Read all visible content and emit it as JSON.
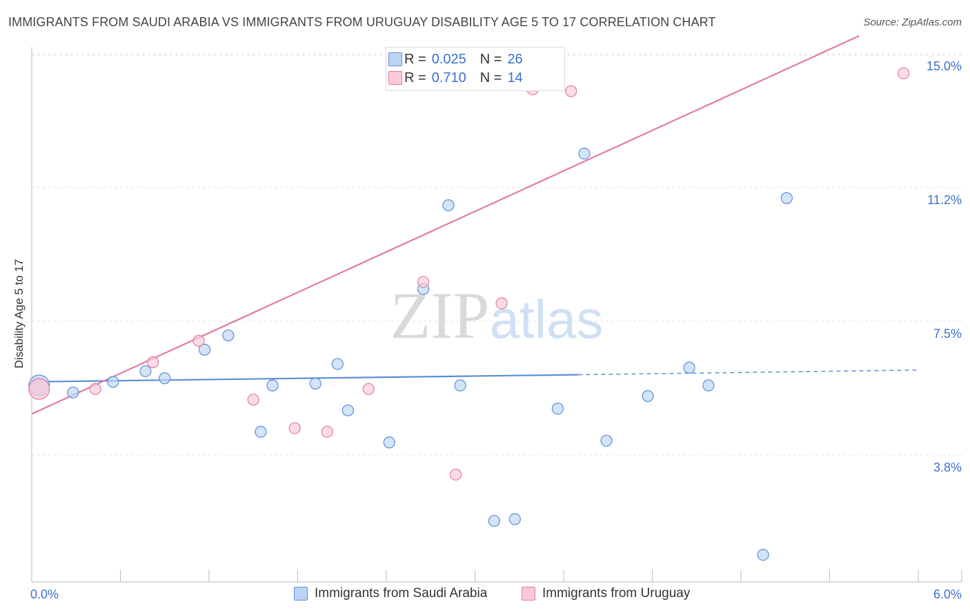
{
  "chart_data": {
    "type": "scatter",
    "title": "IMMIGRANTS FROM SAUDI ARABIA VS IMMIGRANTS FROM URUGUAY DISABILITY AGE 5 TO 17 CORRELATION CHART",
    "source": "Source: ZipAtlas.com",
    "ylabel": "Disability Age 5 to 17",
    "xlabel": "",
    "xlim": [
      0,
      6.0
    ],
    "ylim": [
      0.5,
      15.5
    ],
    "x_tick_labels": [
      "0.0%",
      "6.0%"
    ],
    "y_ticks": [
      {
        "value": 15.0,
        "label": "15.0%"
      },
      {
        "value": 11.25,
        "label": "11.2%"
      },
      {
        "value": 7.5,
        "label": "7.5%"
      },
      {
        "value": 3.75,
        "label": "3.8%"
      }
    ],
    "watermark": "ZIPatlas",
    "series": [
      {
        "name": "Immigrants from Saudi Arabia",
        "color": "#5b8fd6",
        "fill": "#bcd4f5",
        "r_label": "R =",
        "r_value": "0.025",
        "n_label": "N =",
        "n_value": "26",
        "trend": {
          "x0": 0.0,
          "y0": 5.8,
          "x1": 3.7,
          "y1": 6.0,
          "dash_to_x": 6.0,
          "dash_to_y": 6.13
        },
        "points": [
          {
            "x": 0.05,
            "y": 5.7,
            "big": true
          },
          {
            "x": 0.28,
            "y": 5.5
          },
          {
            "x": 0.55,
            "y": 5.8
          },
          {
            "x": 0.77,
            "y": 6.1
          },
          {
            "x": 0.9,
            "y": 5.9
          },
          {
            "x": 1.17,
            "y": 6.7
          },
          {
            "x": 1.33,
            "y": 7.1
          },
          {
            "x": 1.55,
            "y": 4.4
          },
          {
            "x": 1.63,
            "y": 5.7
          },
          {
            "x": 1.92,
            "y": 5.75
          },
          {
            "x": 2.07,
            "y": 6.3
          },
          {
            "x": 2.14,
            "y": 5.0
          },
          {
            "x": 2.42,
            "y": 4.1
          },
          {
            "x": 2.65,
            "y": 8.4
          },
          {
            "x": 2.82,
            "y": 10.75
          },
          {
            "x": 2.9,
            "y": 5.7
          },
          {
            "x": 3.13,
            "y": 1.9
          },
          {
            "x": 3.27,
            "y": 1.95
          },
          {
            "x": 3.56,
            "y": 5.05
          },
          {
            "x": 3.74,
            "y": 12.2
          },
          {
            "x": 3.89,
            "y": 4.15
          },
          {
            "x": 4.17,
            "y": 5.4
          },
          {
            "x": 4.45,
            "y": 6.2
          },
          {
            "x": 4.58,
            "y": 5.7
          },
          {
            "x": 4.95,
            "y": 0.95
          },
          {
            "x": 5.11,
            "y": 10.95
          }
        ]
      },
      {
        "name": "Immigrants from Uruguay",
        "color": "#e07ba0",
        "fill": "#f9c9d7",
        "r_label": "R =",
        "r_value": "0.710",
        "n_label": "N =",
        "n_value": "14",
        "trend": {
          "x0": 0.0,
          "y0": 4.9,
          "x1": 5.6,
          "y1": 15.5
        },
        "points": [
          {
            "x": 0.05,
            "y": 5.6,
            "big": true
          },
          {
            "x": 0.43,
            "y": 5.6
          },
          {
            "x": 0.82,
            "y": 6.35
          },
          {
            "x": 1.13,
            "y": 6.95
          },
          {
            "x": 1.5,
            "y": 5.3
          },
          {
            "x": 1.78,
            "y": 4.5
          },
          {
            "x": 2.0,
            "y": 4.4
          },
          {
            "x": 2.28,
            "y": 5.6
          },
          {
            "x": 2.65,
            "y": 8.6
          },
          {
            "x": 2.87,
            "y": 3.2
          },
          {
            "x": 3.18,
            "y": 8.0
          },
          {
            "x": 3.39,
            "y": 14.0
          },
          {
            "x": 3.65,
            "y": 13.95
          },
          {
            "x": 5.9,
            "y": 14.45
          }
        ]
      }
    ]
  }
}
